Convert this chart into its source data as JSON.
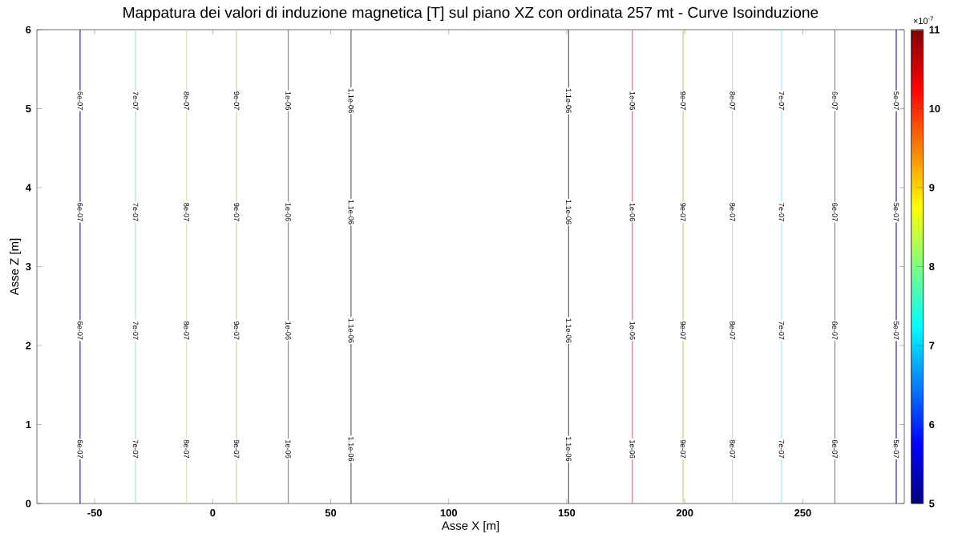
{
  "chart_data": {
    "type": "line",
    "title": "Mappatura dei valori di induzione magnetica [T] sul piano XZ con ordinata 257 mt - Curve Isoinduzione",
    "xlabel": "Asse X [m]",
    "ylabel": "Asse Z [m]",
    "clabel": "×10$^{-7}$",
    "xlim": [
      -74.5,
      293
    ],
    "ylim": [
      0,
      6
    ],
    "xticks": [
      -50,
      0,
      50,
      100,
      150,
      200,
      250
    ],
    "yticks": [
      0,
      1,
      2,
      3,
      4,
      5,
      6
    ],
    "clim": [
      5,
      11
    ],
    "cticks": [
      5,
      6,
      7,
      8,
      9,
      10,
      11
    ],
    "series": [
      {
        "name": "6e-07",
        "color": "#2a2ad8",
        "x": [
          -56.2,
          -56.2
        ],
        "values": [
          0,
          6
        ]
      },
      {
        "name": "7e-07",
        "color": "#9ee6e6",
        "x": [
          -32.7,
          -32.7
        ],
        "values": [
          0,
          6
        ]
      },
      {
        "name": "8e-07",
        "color": "#d6e6b0",
        "x": [
          -11.1,
          -11.1
        ],
        "values": [
          0,
          6
        ]
      },
      {
        "name": "9e-07",
        "color": "#d8d48a",
        "x": [
          10.1,
          10.1
        ],
        "values": [
          0,
          6
        ]
      },
      {
        "name": "1e-06",
        "color": "#a08088",
        "x": [
          32,
          32
        ],
        "values": [
          0,
          6
        ]
      },
      {
        "name": "1.1e-06",
        "color": "#6a6060",
        "x": [
          58.6,
          58.6
        ],
        "values": [
          0,
          6
        ]
      },
      {
        "name": "1.1e-06",
        "color": "#8a5058",
        "x": [
          150.8,
          150.8
        ],
        "values": [
          0,
          6
        ]
      },
      {
        "name": "1e-06",
        "color": "#c87888",
        "x": [
          177.8,
          177.8
        ],
        "values": [
          0,
          6
        ]
      },
      {
        "name": "9e-07",
        "color": "#d0d070",
        "x": [
          199.3,
          199.3
        ],
        "values": [
          0,
          6
        ]
      },
      {
        "name": "8e-07",
        "color": "#b8e6c8",
        "x": [
          220.2,
          220.2
        ],
        "values": [
          0,
          6
        ]
      },
      {
        "name": "7e-07",
        "color": "#a0e8ec",
        "x": [
          241,
          241
        ],
        "values": [
          0,
          6
        ]
      },
      {
        "name": "6e-07",
        "color": "#8080a8",
        "x": [
          263.6,
          263.6
        ],
        "values": [
          0,
          6
        ]
      },
      {
        "name": "5e-07",
        "color": "#2a2a90",
        "x": [
          289.6,
          289.6
        ],
        "values": [
          0,
          6
        ]
      }
    ]
  }
}
